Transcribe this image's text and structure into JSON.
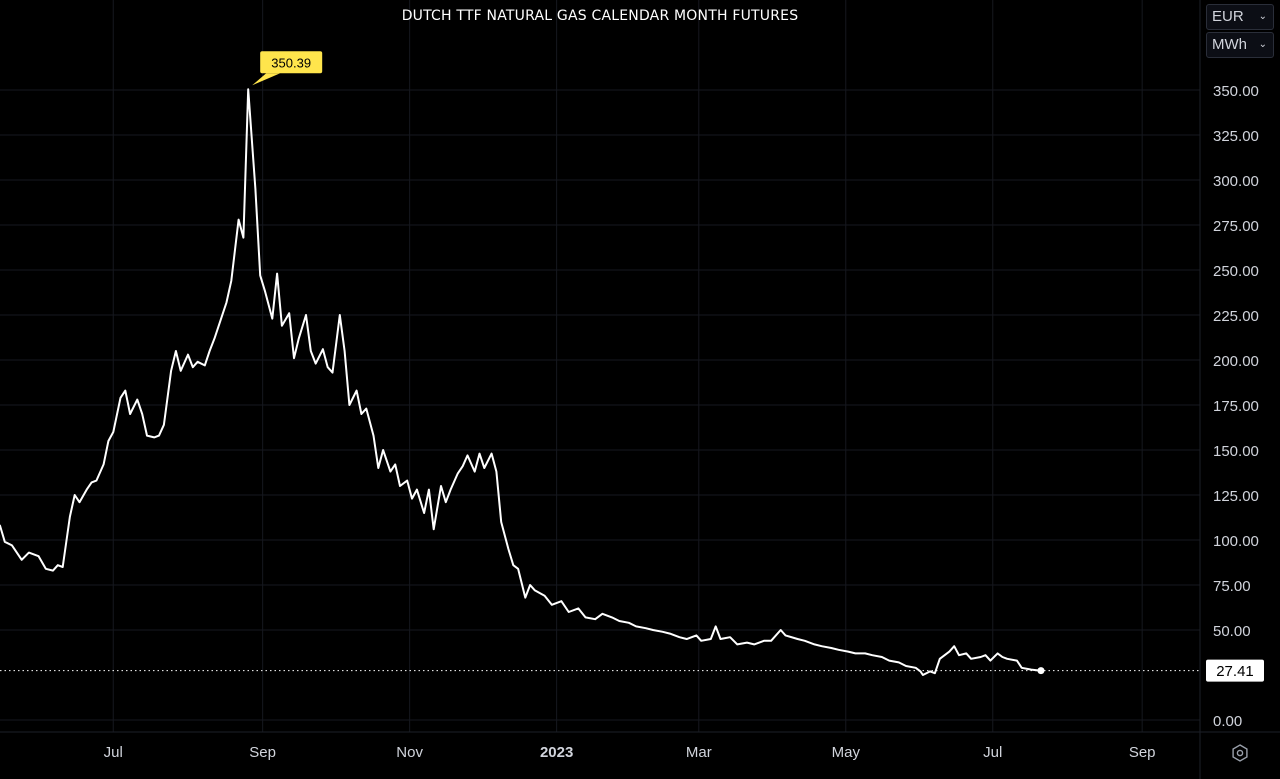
{
  "header": {
    "title": "DUTCH TTF NATURAL GAS CALENDAR MONTH FUTURES"
  },
  "units": {
    "currency": "EUR",
    "energy": "MWh"
  },
  "icons": {
    "settings": "gear-icon",
    "dropdown": "chevron-down-icon"
  },
  "colors": {
    "background": "#000000",
    "line": "#ffffff",
    "peak_badge": "#ffe54c",
    "last_badge": "#ffffff",
    "axis_text": "#d1d4dc",
    "grid": "#16181f"
  },
  "chart_data": {
    "type": "line",
    "title": "DUTCH TTF NATURAL GAS CALENDAR MONTH FUTURES",
    "xlabel": "",
    "ylabel": "",
    "x_tick_labels": [
      "Jul",
      "Sep",
      "Nov",
      "2023",
      "Mar",
      "May",
      "Jul",
      "Sep"
    ],
    "x_tick_dates": [
      "2022-07-01",
      "2022-09-01",
      "2022-11-01",
      "2023-01-01",
      "2023-03-01",
      "2023-05-01",
      "2023-07-01",
      "2023-09-01"
    ],
    "y_tick_labels": [
      "350.00",
      "325.00",
      "300.00",
      "275.00",
      "250.00",
      "225.00",
      "200.00",
      "175.00",
      "150.00",
      "125.00",
      "100.00",
      "75.00",
      "50.00",
      "0.00"
    ],
    "ylim": [
      0,
      350
    ],
    "xlim": [
      "2022-05-15",
      "2023-09-25"
    ],
    "grid": true,
    "annotations": {
      "peak_label": "350.39",
      "peak_date": "2022-08-26",
      "peak_value": 350.39,
      "last_label": "27.41",
      "last_date": "2023-07-21",
      "last_value": 27.41
    },
    "series": [
      {
        "points": [
          [
            "2022-05-15",
            108
          ],
          [
            "2022-05-17",
            99
          ],
          [
            "2022-05-20",
            97
          ],
          [
            "2022-05-24",
            89
          ],
          [
            "2022-05-27",
            93
          ],
          [
            "2022-05-31",
            91
          ],
          [
            "2022-06-03",
            84
          ],
          [
            "2022-06-06",
            83
          ],
          [
            "2022-06-08",
            86
          ],
          [
            "2022-06-10",
            85
          ],
          [
            "2022-06-13",
            113
          ],
          [
            "2022-06-15",
            125
          ],
          [
            "2022-06-17",
            121
          ],
          [
            "2022-06-20",
            128
          ],
          [
            "2022-06-22",
            132
          ],
          [
            "2022-06-24",
            133
          ],
          [
            "2022-06-27",
            142
          ],
          [
            "2022-06-29",
            155
          ],
          [
            "2022-07-01",
            160
          ],
          [
            "2022-07-04",
            179
          ],
          [
            "2022-07-06",
            183
          ],
          [
            "2022-07-08",
            170
          ],
          [
            "2022-07-11",
            178
          ],
          [
            "2022-07-13",
            170
          ],
          [
            "2022-07-15",
            158
          ],
          [
            "2022-07-18",
            157
          ],
          [
            "2022-07-20",
            158
          ],
          [
            "2022-07-22",
            164
          ],
          [
            "2022-07-25",
            194
          ],
          [
            "2022-07-27",
            205
          ],
          [
            "2022-07-29",
            194
          ],
          [
            "2022-08-01",
            203
          ],
          [
            "2022-08-03",
            196
          ],
          [
            "2022-08-05",
            199
          ],
          [
            "2022-08-08",
            197
          ],
          [
            "2022-08-10",
            205
          ],
          [
            "2022-08-12",
            212
          ],
          [
            "2022-08-15",
            224
          ],
          [
            "2022-08-17",
            232
          ],
          [
            "2022-08-19",
            244
          ],
          [
            "2022-08-22",
            278
          ],
          [
            "2022-08-24",
            268
          ],
          [
            "2022-08-26",
            350.39
          ],
          [
            "2022-08-29",
            295
          ],
          [
            "2022-08-31",
            247
          ],
          [
            "2022-09-02",
            238
          ],
          [
            "2022-09-05",
            223
          ],
          [
            "2022-09-07",
            248
          ],
          [
            "2022-09-09",
            219
          ],
          [
            "2022-09-12",
            226
          ],
          [
            "2022-09-14",
            201
          ],
          [
            "2022-09-16",
            212
          ],
          [
            "2022-09-19",
            225
          ],
          [
            "2022-09-21",
            205
          ],
          [
            "2022-09-23",
            198
          ],
          [
            "2022-09-26",
            206
          ],
          [
            "2022-09-28",
            196
          ],
          [
            "2022-09-30",
            193
          ],
          [
            "2022-10-03",
            225
          ],
          [
            "2022-10-05",
            205
          ],
          [
            "2022-10-07",
            175
          ],
          [
            "2022-10-10",
            183
          ],
          [
            "2022-10-12",
            170
          ],
          [
            "2022-10-14",
            173
          ],
          [
            "2022-10-17",
            158
          ],
          [
            "2022-10-19",
            140
          ],
          [
            "2022-10-21",
            150
          ],
          [
            "2022-10-24",
            138
          ],
          [
            "2022-10-26",
            142
          ],
          [
            "2022-10-28",
            130
          ],
          [
            "2022-10-31",
            133
          ],
          [
            "2022-11-02",
            123
          ],
          [
            "2022-11-04",
            128
          ],
          [
            "2022-11-07",
            115
          ],
          [
            "2022-11-09",
            128
          ],
          [
            "2022-11-11",
            106
          ],
          [
            "2022-11-14",
            130
          ],
          [
            "2022-11-16",
            121
          ],
          [
            "2022-11-18",
            128
          ],
          [
            "2022-11-21",
            137
          ],
          [
            "2022-11-23",
            141
          ],
          [
            "2022-11-25",
            147
          ],
          [
            "2022-11-28",
            138
          ],
          [
            "2022-11-30",
            148
          ],
          [
            "2022-12-02",
            140
          ],
          [
            "2022-12-05",
            148
          ],
          [
            "2022-12-07",
            138
          ],
          [
            "2022-12-09",
            110
          ],
          [
            "2022-12-12",
            95
          ],
          [
            "2022-12-14",
            86
          ],
          [
            "2022-12-16",
            84
          ],
          [
            "2022-12-19",
            68
          ],
          [
            "2022-12-21",
            75
          ],
          [
            "2022-12-23",
            72
          ],
          [
            "2022-12-27",
            69
          ],
          [
            "2022-12-30",
            64
          ],
          [
            "2023-01-03",
            66
          ],
          [
            "2023-01-06",
            60
          ],
          [
            "2023-01-10",
            62
          ],
          [
            "2023-01-13",
            57
          ],
          [
            "2023-01-17",
            56
          ],
          [
            "2023-01-20",
            59
          ],
          [
            "2023-01-24",
            57
          ],
          [
            "2023-01-27",
            55
          ],
          [
            "2023-01-31",
            54
          ],
          [
            "2023-02-03",
            52
          ],
          [
            "2023-02-07",
            51
          ],
          [
            "2023-02-10",
            50
          ],
          [
            "2023-02-14",
            49
          ],
          [
            "2023-02-17",
            48
          ],
          [
            "2023-02-21",
            46
          ],
          [
            "2023-02-24",
            45
          ],
          [
            "2023-02-28",
            47
          ],
          [
            "2023-03-02",
            44
          ],
          [
            "2023-03-06",
            45
          ],
          [
            "2023-03-08",
            52
          ],
          [
            "2023-03-10",
            45
          ],
          [
            "2023-03-14",
            46
          ],
          [
            "2023-03-17",
            42
          ],
          [
            "2023-03-21",
            43
          ],
          [
            "2023-03-24",
            42
          ],
          [
            "2023-03-28",
            44
          ],
          [
            "2023-03-31",
            44
          ],
          [
            "2023-04-04",
            50
          ],
          [
            "2023-04-06",
            47
          ],
          [
            "2023-04-11",
            45
          ],
          [
            "2023-04-14",
            44
          ],
          [
            "2023-04-18",
            42
          ],
          [
            "2023-04-21",
            41
          ],
          [
            "2023-04-25",
            40
          ],
          [
            "2023-04-28",
            39
          ],
          [
            "2023-05-02",
            38
          ],
          [
            "2023-05-05",
            37
          ],
          [
            "2023-05-09",
            37
          ],
          [
            "2023-05-12",
            36
          ],
          [
            "2023-05-16",
            35
          ],
          [
            "2023-05-19",
            33
          ],
          [
            "2023-05-23",
            32
          ],
          [
            "2023-05-26",
            30
          ],
          [
            "2023-05-30",
            29
          ],
          [
            "2023-06-01",
            27
          ],
          [
            "2023-06-02",
            25
          ],
          [
            "2023-06-05",
            27
          ],
          [
            "2023-06-07",
            26
          ],
          [
            "2023-06-09",
            34
          ],
          [
            "2023-06-13",
            38
          ],
          [
            "2023-06-15",
            41
          ],
          [
            "2023-06-17",
            36
          ],
          [
            "2023-06-20",
            37
          ],
          [
            "2023-06-22",
            34
          ],
          [
            "2023-06-26",
            35
          ],
          [
            "2023-06-28",
            36
          ],
          [
            "2023-06-30",
            33
          ],
          [
            "2023-07-03",
            37
          ],
          [
            "2023-07-05",
            35
          ],
          [
            "2023-07-07",
            34
          ],
          [
            "2023-07-11",
            33
          ],
          [
            "2023-07-13",
            29
          ],
          [
            "2023-07-17",
            28
          ],
          [
            "2023-07-21",
            27.41
          ]
        ]
      }
    ]
  }
}
